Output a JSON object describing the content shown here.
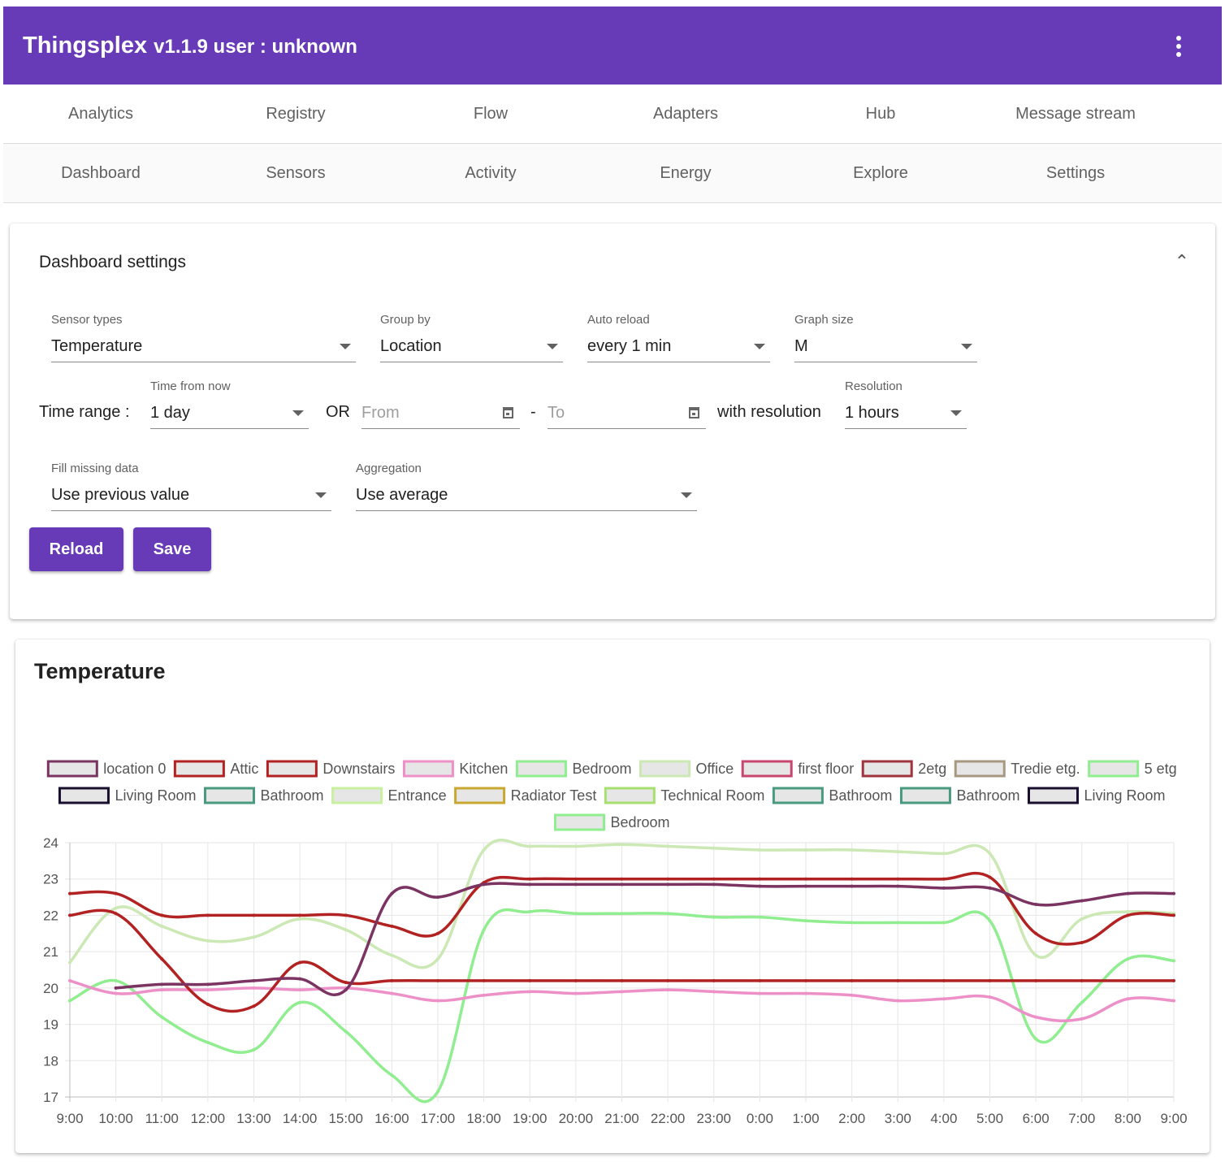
{
  "app": {
    "name": "Thingsplex",
    "version_user": "v1.1.9 user : unknown"
  },
  "nav_row1": [
    "Analytics",
    "Registry",
    "Flow",
    "Adapters",
    "Hub",
    "Message stream"
  ],
  "nav_row2": [
    "Dashboard",
    "Sensors",
    "Activity",
    "Energy",
    "Explore",
    "Settings"
  ],
  "settings": {
    "title": "Dashboard settings",
    "sensor_types": {
      "label": "Sensor types",
      "value": "Temperature"
    },
    "group_by": {
      "label": "Group by",
      "value": "Location"
    },
    "auto_reload": {
      "label": "Auto reload",
      "value": "every 1 min"
    },
    "graph_size": {
      "label": "Graph size",
      "value": "M"
    },
    "time_range_label": "Time range :",
    "time_from_now": {
      "label": "Time from now",
      "value": "1 day"
    },
    "or_label": "OR",
    "from_placeholder": "From",
    "dash": "-",
    "to_placeholder": "To",
    "with_resolution": "with resolution",
    "resolution": {
      "label": "Resolution",
      "value": "1 hours"
    },
    "fill_missing": {
      "label": "Fill missing data",
      "value": "Use previous value"
    },
    "aggregation": {
      "label": "Aggregation",
      "value": "Use average"
    },
    "reload_button": "Reload",
    "save_button": "Save"
  },
  "chart_data": {
    "type": "line",
    "title": "Temperature",
    "categories": [
      "9:00",
      "10:00",
      "11:00",
      "12:00",
      "13:00",
      "14:00",
      "15:00",
      "16:00",
      "17:00",
      "18:00",
      "19:00",
      "20:00",
      "21:00",
      "22:00",
      "23:00",
      "0:00",
      "1:00",
      "2:00",
      "3:00",
      "4:00",
      "5:00",
      "6:00",
      "7:00",
      "8:00",
      "9:00"
    ],
    "ylim": [
      17,
      24
    ],
    "yticks": [
      17,
      18,
      19,
      20,
      21,
      22,
      23,
      24
    ],
    "grid": true,
    "legend_position": "top",
    "legend": [
      {
        "label": "location 0",
        "color": "#7b3462"
      },
      {
        "label": "Attic",
        "color": "#b22222"
      },
      {
        "label": "Downstairs",
        "color": "#b22222"
      },
      {
        "label": "Kitchen",
        "color": "#ee90c8"
      },
      {
        "label": "Bedroom",
        "color": "#90ee90"
      },
      {
        "label": "Office",
        "color": "#cce8b5"
      },
      {
        "label": "first floor",
        "color": "#c8456e"
      },
      {
        "label": "2etg",
        "color": "#a0343e"
      },
      {
        "label": "Tredie etg.",
        "color": "#a89880"
      },
      {
        "label": "5 etg",
        "color": "#90ee90"
      },
      {
        "label": "Living Room",
        "color": "#1a0f2e"
      },
      {
        "label": "Bathroom",
        "color": "#4a9a7e"
      },
      {
        "label": "Entrance",
        "color": "#c8f0a0"
      },
      {
        "label": "Radiator Test",
        "color": "#c8a830"
      },
      {
        "label": "Technical Room",
        "color": "#a8e070"
      },
      {
        "label": "Bathroom",
        "color": "#4a9a7e"
      },
      {
        "label": "Bathroom",
        "color": "#4a9a7e"
      },
      {
        "label": "Living Room",
        "color": "#1a0f2e"
      },
      {
        "label": "Bedroom",
        "color": "#90ee90"
      }
    ],
    "series": [
      {
        "name": "Office",
        "color": "#cce8b5",
        "values": [
          20.7,
          22.2,
          21.7,
          21.3,
          21.4,
          21.9,
          21.6,
          20.9,
          20.8,
          23.8,
          23.9,
          23.9,
          23.95,
          23.9,
          23.85,
          23.8,
          23.8,
          23.8,
          23.75,
          23.7,
          23.7,
          20.9,
          21.9,
          22.1,
          22.05
        ]
      },
      {
        "name": "Bedroom",
        "color": "#90ee90",
        "values": [
          19.65,
          20.2,
          19.2,
          18.5,
          18.3,
          19.6,
          18.8,
          17.6,
          17.15,
          21.6,
          22.1,
          22.05,
          22.05,
          22.05,
          21.95,
          21.95,
          21.85,
          21.8,
          21.8,
          21.8,
          21.85,
          18.6,
          19.6,
          20.8,
          20.75
        ]
      },
      {
        "name": "Kitchen",
        "color": "#ee90c8",
        "values": [
          20.2,
          19.85,
          19.95,
          19.95,
          20.0,
          19.95,
          20.0,
          19.85,
          19.65,
          19.8,
          19.9,
          19.85,
          19.9,
          19.95,
          19.9,
          19.85,
          19.85,
          19.8,
          19.65,
          19.7,
          19.75,
          19.2,
          19.15,
          19.7,
          19.65
        ]
      },
      {
        "name": "Downstairs",
        "color": "#b22222",
        "values": [
          22.0,
          22.05,
          20.8,
          19.55,
          19.5,
          20.7,
          20.15,
          20.2,
          20.2,
          20.2,
          20.2,
          20.2,
          20.2,
          20.2,
          20.2,
          20.2,
          20.2,
          20.2,
          20.2,
          20.2,
          20.2,
          20.2,
          20.2,
          20.2,
          20.2
        ]
      },
      {
        "name": "Attic",
        "color": "#b22222",
        "values": [
          22.6,
          22.6,
          22.0,
          22.0,
          22.0,
          22.0,
          22.0,
          21.7,
          21.5,
          22.9,
          23.0,
          23.0,
          23.0,
          23.0,
          23.0,
          23.0,
          23.0,
          23.0,
          23.0,
          23.0,
          23.05,
          21.5,
          21.25,
          22.0,
          22.0
        ]
      },
      {
        "name": "location 0",
        "color": "#7b3462",
        "values": [
          null,
          20.0,
          20.1,
          20.1,
          20.2,
          20.25,
          19.95,
          22.6,
          22.5,
          22.85,
          22.85,
          22.85,
          22.85,
          22.85,
          22.85,
          22.8,
          22.8,
          22.8,
          22.8,
          22.75,
          22.75,
          22.3,
          22.4,
          22.6,
          22.6
        ]
      }
    ]
  }
}
